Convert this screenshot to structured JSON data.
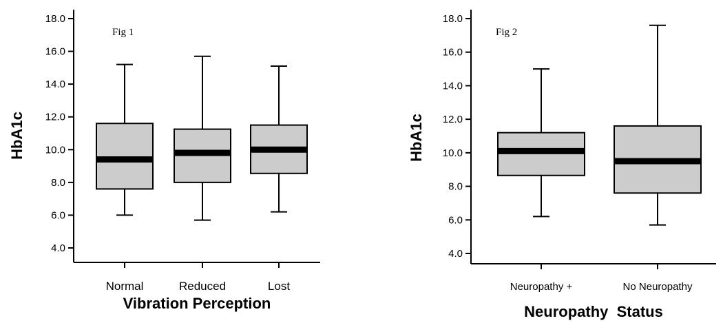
{
  "chart_data": [
    {
      "type": "boxplot",
      "annotation": "Fig 1",
      "xlabel": "Vibration Perception",
      "ylabel": "HbA1c",
      "ylim": [
        3.2,
        18.4
      ],
      "yticks": [
        "4.0",
        "6.0",
        "8.0",
        "10.0",
        "12.0",
        "14.0",
        "16.0",
        "18.0"
      ],
      "categories": [
        "Normal",
        "Reduced",
        "Lost"
      ],
      "boxes": [
        {
          "category": "Normal",
          "min": 6.0,
          "q1": 7.6,
          "median": 9.4,
          "q3": 11.6,
          "max": 15.2
        },
        {
          "category": "Reduced",
          "min": 5.7,
          "q1": 8.0,
          "median": 9.8,
          "q3": 11.25,
          "max": 15.7
        },
        {
          "category": "Lost",
          "min": 6.2,
          "q1": 8.55,
          "median": 10.0,
          "q3": 11.5,
          "max": 15.1
        }
      ],
      "box_color": "#cccccc",
      "grid": false
    },
    {
      "type": "boxplot",
      "annotation": "Fig 2",
      "xlabel": "Neuropathy  Status",
      "ylabel": "HbA1c",
      "ylim": [
        3.2,
        18.4
      ],
      "yticks": [
        "4.0",
        "6.0",
        "8.0",
        "10.0",
        "12.0",
        "14.0",
        "16.0",
        "18.0"
      ],
      "categories": [
        "Neuropathy +",
        "No Neuropathy"
      ],
      "boxes": [
        {
          "category": "Neuropathy +",
          "min": 6.2,
          "q1": 8.65,
          "median": 10.1,
          "q3": 11.2,
          "max": 15.0
        },
        {
          "category": "No Neuropathy",
          "min": 5.7,
          "q1": 7.6,
          "median": 9.5,
          "q3": 11.6,
          "max": 17.6
        }
      ],
      "box_color": "#cccccc",
      "grid": false
    }
  ]
}
